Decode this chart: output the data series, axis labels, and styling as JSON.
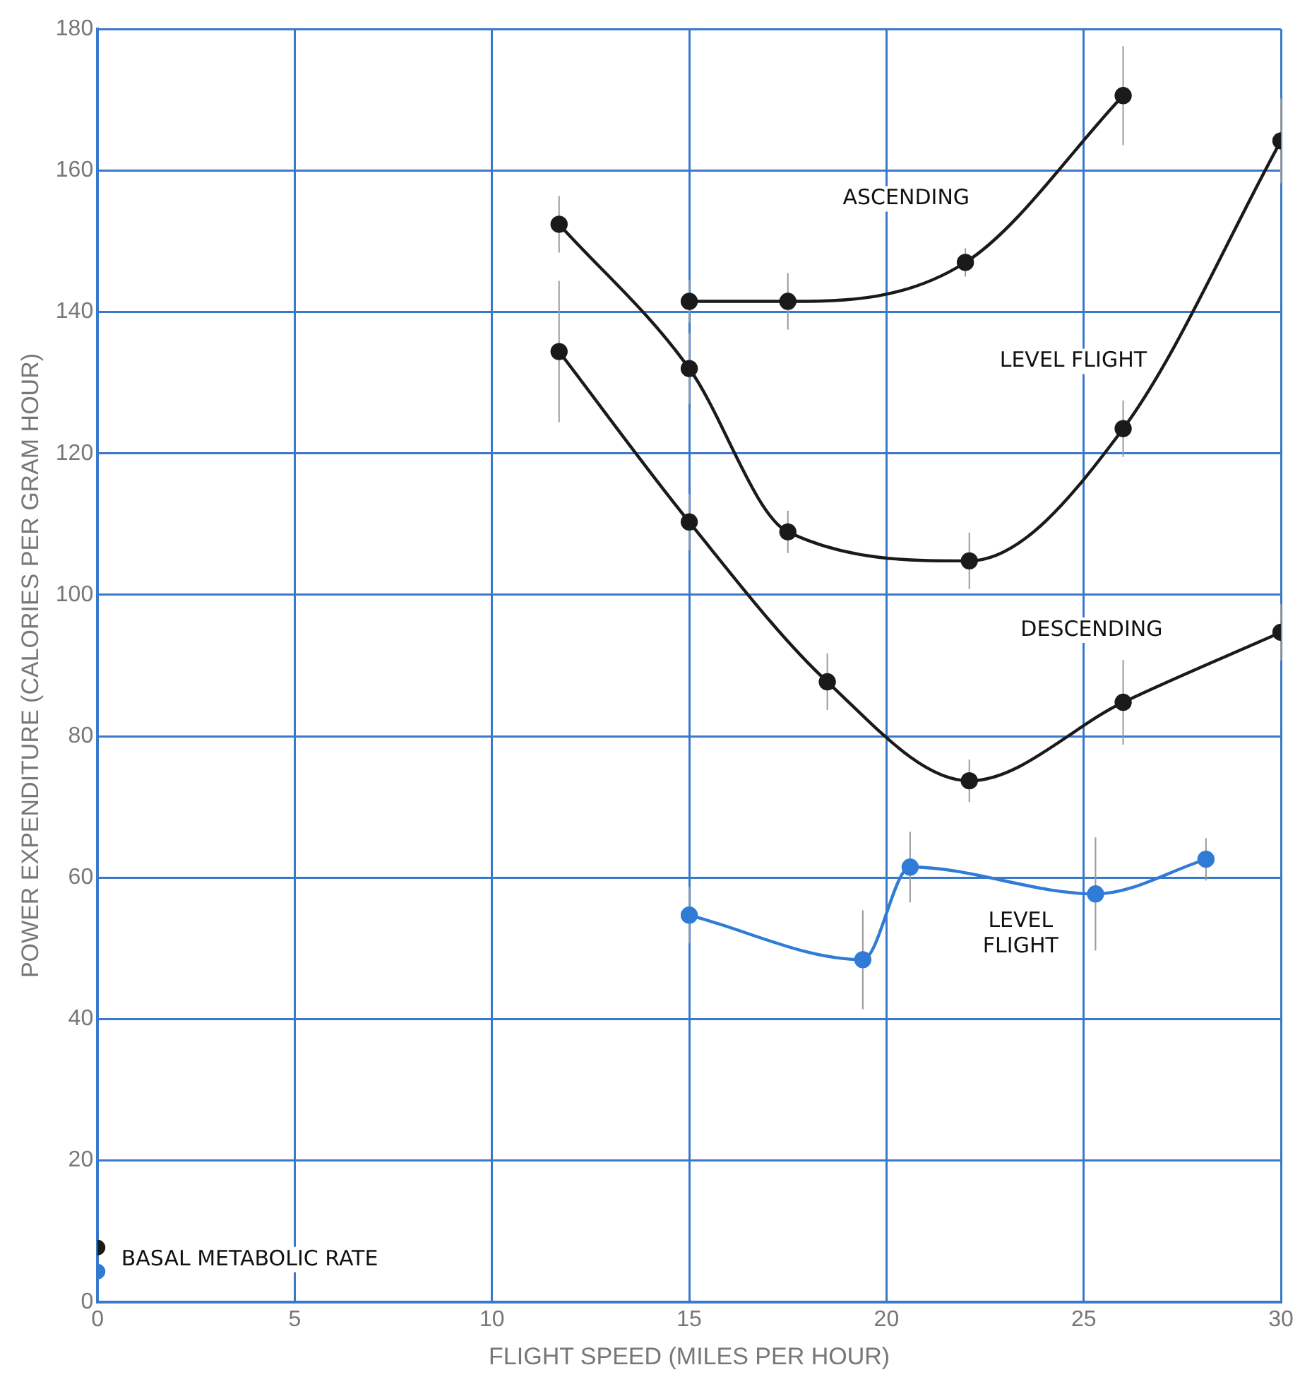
{
  "chart_data": {
    "type": "line",
    "xlabel": "FLIGHT SPEED (MILES PER HOUR)",
    "ylabel": "POWER EXPENDITURE (CALORIES PER GRAM HOUR)",
    "xlim": [
      0,
      30
    ],
    "xticks": [
      0,
      5,
      10,
      15,
      20,
      25,
      30
    ],
    "ylim": [
      0,
      180
    ],
    "yticks": [
      0,
      20,
      40,
      60,
      80,
      100,
      120,
      140,
      160,
      180
    ],
    "grid": true,
    "legend": false,
    "marker": "circle",
    "line_style": "solid",
    "series": [
      {
        "name": "ASCENDING",
        "color": "#1a1a1a",
        "x": [
          15,
          17.5,
          22,
          26
        ],
        "values": [
          141.5,
          141.5,
          147,
          170.6
        ],
        "errors": [
          3,
          4,
          2,
          7
        ]
      },
      {
        "name": "LEVEL FLIGHT",
        "color": "#1a1a1a",
        "x": [
          11.7,
          15,
          17.5,
          22.1,
          26,
          30
        ],
        "values": [
          152.4,
          132,
          108.9,
          104.8,
          123.5,
          164.2
        ],
        "errors": [
          4,
          5,
          3,
          4,
          4,
          6
        ]
      },
      {
        "name": "DESCENDING",
        "color": "#1a1a1a",
        "x": [
          11.7,
          15,
          18.5,
          22.1,
          26,
          30
        ],
        "values": [
          134.4,
          110.3,
          87.7,
          73.7,
          84.8,
          94.7
        ],
        "errors": [
          10,
          4,
          4,
          3,
          6,
          4
        ]
      },
      {
        "name": "LEVEL FLIGHT",
        "color": "#2f7bd6",
        "x": [
          15,
          19.4,
          20.6,
          25.3,
          28.1
        ],
        "values": [
          54.7,
          48.4,
          61.5,
          57.7,
          62.6
        ],
        "errors": [
          4,
          7,
          5,
          8,
          3
        ]
      },
      {
        "name": "BASAL METABOLIC RATE",
        "type": "scatter",
        "x": [
          0,
          0
        ],
        "values": [
          7.7,
          4.3
        ],
        "colors": [
          "#1a1a1a",
          "#2f7bd6"
        ]
      }
    ]
  }
}
